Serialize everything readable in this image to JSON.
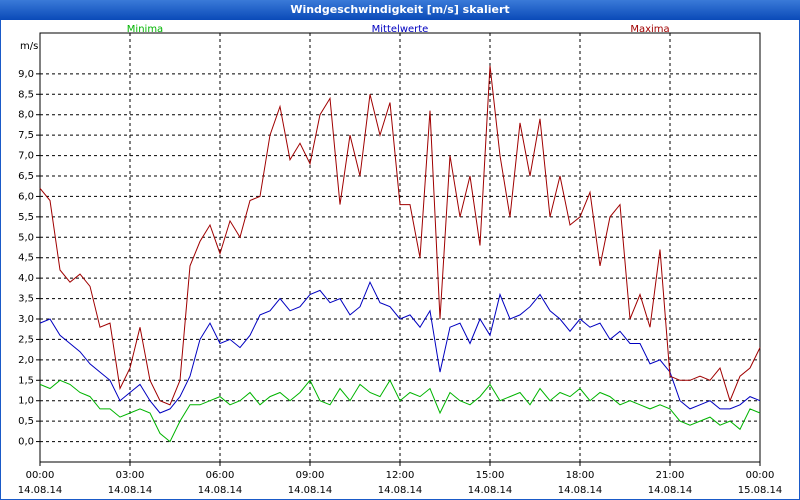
{
  "chart_data": {
    "type": "line",
    "title": "Windgeschwindigkeit [m/s] skaliert",
    "ylabel": "m/s",
    "legend": "top",
    "grid": true,
    "x": [
      0,
      20,
      40,
      60,
      80,
      100,
      120,
      140,
      160,
      180,
      200,
      220,
      240,
      260,
      280,
      300,
      320,
      340,
      360,
      380,
      400,
      420,
      440,
      460,
      480,
      500,
      520,
      540,
      560,
      580,
      600,
      620,
      640,
      660,
      680,
      700,
      720,
      740,
      760,
      780,
      800,
      820,
      840,
      860,
      880,
      900,
      920,
      940,
      960,
      980,
      1000,
      1020,
      1040,
      1060,
      1080,
      1100,
      1120,
      1140,
      1160,
      1180,
      1200,
      1220,
      1240,
      1260,
      1280,
      1300,
      1320,
      1340,
      1360,
      1380,
      1400,
      1420,
      1440
    ],
    "xlim": [
      0,
      1440
    ],
    "xticks": [
      {
        "value": 0,
        "label": "00:00"
      },
      {
        "value": 180,
        "label": "03:00"
      },
      {
        "value": 360,
        "label": "06:00"
      },
      {
        "value": 540,
        "label": "09:00"
      },
      {
        "value": 720,
        "label": "12:00"
      },
      {
        "value": 900,
        "label": "15:00"
      },
      {
        "value": 1080,
        "label": "18:00"
      },
      {
        "value": 1260,
        "label": "21:00"
      },
      {
        "value": 1440,
        "label": "00:00"
      }
    ],
    "xtick_dates": [
      "14.08.14",
      "14.08.14",
      "14.08.14",
      "14.08.14",
      "14.08.14",
      "14.08.14",
      "14.08.14",
      "14.08.14",
      "15.08.14"
    ],
    "ylim": [
      -0.5,
      10
    ],
    "yticks": [
      {
        "value": 0,
        "label": "0,0"
      },
      {
        "value": 0.5,
        "label": "0,5"
      },
      {
        "value": 1,
        "label": "1,0"
      },
      {
        "value": 1.5,
        "label": "1,5"
      },
      {
        "value": 2,
        "label": "2,0"
      },
      {
        "value": 2.5,
        "label": "2,5"
      },
      {
        "value": 3,
        "label": "3,0"
      },
      {
        "value": 3.5,
        "label": "3,5"
      },
      {
        "value": 4,
        "label": "4,0"
      },
      {
        "value": 4.5,
        "label": "4,5"
      },
      {
        "value": 5,
        "label": "5,0"
      },
      {
        "value": 5.5,
        "label": "5,5"
      },
      {
        "value": 6,
        "label": "6,0"
      },
      {
        "value": 6.5,
        "label": "6,5"
      },
      {
        "value": 7,
        "label": "7,0"
      },
      {
        "value": 7.5,
        "label": "7,5"
      },
      {
        "value": 8,
        "label": "8,0"
      },
      {
        "value": 8.5,
        "label": "8,5"
      },
      {
        "value": 9,
        "label": "9,0"
      }
    ],
    "series": [
      {
        "name": "Minima",
        "color": "#00b400",
        "values": [
          1.4,
          1.3,
          1.5,
          1.4,
          1.2,
          1.1,
          0.8,
          0.8,
          0.6,
          0.7,
          0.8,
          0.7,
          0.2,
          0.0,
          0.5,
          0.9,
          0.9,
          1.0,
          1.1,
          0.9,
          1.0,
          1.2,
          0.9,
          1.1,
          1.2,
          1.0,
          1.2,
          1.5,
          1.0,
          0.9,
          1.3,
          1.0,
          1.4,
          1.2,
          1.1,
          1.5,
          1.0,
          1.2,
          1.1,
          1.3,
          0.7,
          1.2,
          1.0,
          0.9,
          1.1,
          1.4,
          1.0,
          1.1,
          1.2,
          0.9,
          1.3,
          1.0,
          1.2,
          1.1,
          1.3,
          1.0,
          1.2,
          1.1,
          0.9,
          1.0,
          0.9,
          0.8,
          0.9,
          0.8,
          0.5,
          0.4,
          0.5,
          0.6,
          0.4,
          0.5,
          0.3,
          0.8,
          0.7
        ]
      },
      {
        "name": "Mittelwerte",
        "color": "#0000c0",
        "values": [
          2.9,
          3.0,
          2.6,
          2.4,
          2.2,
          1.9,
          1.7,
          1.5,
          1.0,
          1.2,
          1.4,
          1.0,
          0.7,
          0.8,
          1.1,
          1.6,
          2.5,
          2.9,
          2.4,
          2.5,
          2.3,
          2.6,
          3.1,
          3.2,
          3.5,
          3.2,
          3.3,
          3.6,
          3.7,
          3.4,
          3.5,
          3.1,
          3.3,
          3.9,
          3.4,
          3.3,
          3.0,
          3.1,
          2.8,
          3.2,
          1.7,
          2.8,
          2.9,
          2.4,
          3.0,
          2.6,
          3.6,
          3.0,
          3.1,
          3.3,
          3.6,
          3.2,
          3.0,
          2.7,
          3.0,
          2.8,
          2.9,
          2.5,
          2.7,
          2.4,
          2.4,
          1.9,
          2.0,
          1.7,
          1.0,
          0.8,
          0.9,
          1.0,
          0.8,
          0.8,
          0.9,
          1.1,
          1.0
        ]
      },
      {
        "name": "Maxima",
        "color": "#a00000",
        "values": [
          6.2,
          5.9,
          4.2,
          3.9,
          4.1,
          3.8,
          2.8,
          2.9,
          1.3,
          1.8,
          2.8,
          1.5,
          1.0,
          0.9,
          1.5,
          4.3,
          4.9,
          5.3,
          4.6,
          5.4,
          5.0,
          5.9,
          6.0,
          7.5,
          8.2,
          6.9,
          7.3,
          6.8,
          8.0,
          8.4,
          5.8,
          7.5,
          6.5,
          8.5,
          7.5,
          8.3,
          5.8,
          5.8,
          4.5,
          8.1,
          3.0,
          7.0,
          5.5,
          6.5,
          4.8,
          9.2,
          7.0,
          5.5,
          7.8,
          6.5,
          7.9,
          5.5,
          6.5,
          5.3,
          5.5,
          6.1,
          4.3,
          5.5,
          5.8,
          3.0,
          3.6,
          2.8,
          4.7,
          1.6,
          1.5,
          1.5,
          1.6,
          1.5,
          1.8,
          1.0,
          1.6,
          1.8,
          2.3
        ]
      }
    ]
  }
}
